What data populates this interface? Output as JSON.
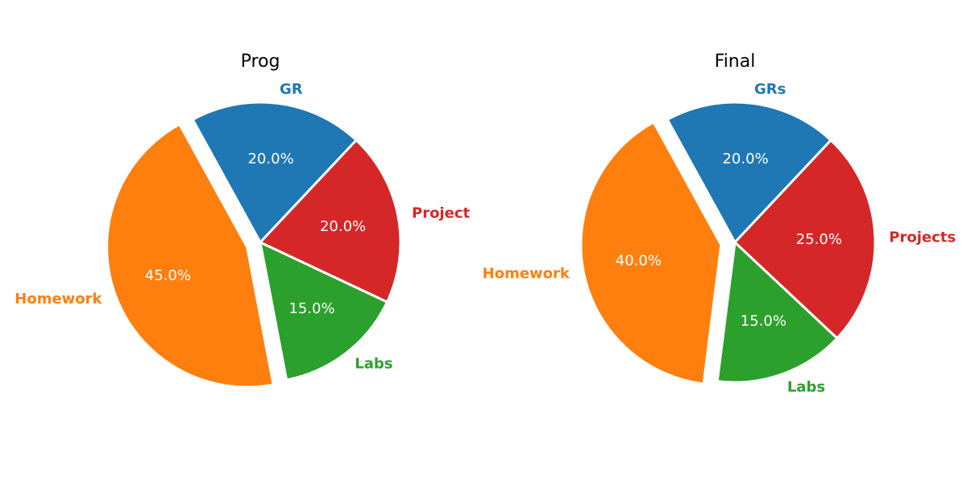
{
  "chart_data": [
    {
      "type": "pie",
      "title": "Prog",
      "start_angle_deg": 46.8,
      "direction": "counterclockwise",
      "slices": [
        {
          "label": "GR",
          "value": 20.0,
          "pct_label": "20.0%",
          "color": "#1f77b4",
          "exploded": false
        },
        {
          "label": "Homework",
          "value": 45.0,
          "pct_label": "45.0%",
          "color": "#ff7f0e",
          "exploded": true
        },
        {
          "label": "Labs",
          "value": 15.0,
          "pct_label": "15.0%",
          "color": "#2ca02c",
          "exploded": false
        },
        {
          "label": "Project",
          "value": 20.0,
          "pct_label": "20.0%",
          "color": "#d62728",
          "exploded": false
        }
      ]
    },
    {
      "type": "pie",
      "title": "Final",
      "start_angle_deg": 46.8,
      "direction": "counterclockwise",
      "slices": [
        {
          "label": "GRs",
          "value": 20.0,
          "pct_label": "20.0%",
          "color": "#1f77b4",
          "exploded": false
        },
        {
          "label": "Homework",
          "value": 40.0,
          "pct_label": "40.0%",
          "color": "#ff7f0e",
          "exploded": true
        },
        {
          "label": "Labs",
          "value": 15.0,
          "pct_label": "15.0%",
          "color": "#2ca02c",
          "exploded": false
        },
        {
          "label": "Projects",
          "value": 25.0,
          "pct_label": "25.0%",
          "color": "#d62728",
          "exploded": false
        }
      ]
    }
  ]
}
